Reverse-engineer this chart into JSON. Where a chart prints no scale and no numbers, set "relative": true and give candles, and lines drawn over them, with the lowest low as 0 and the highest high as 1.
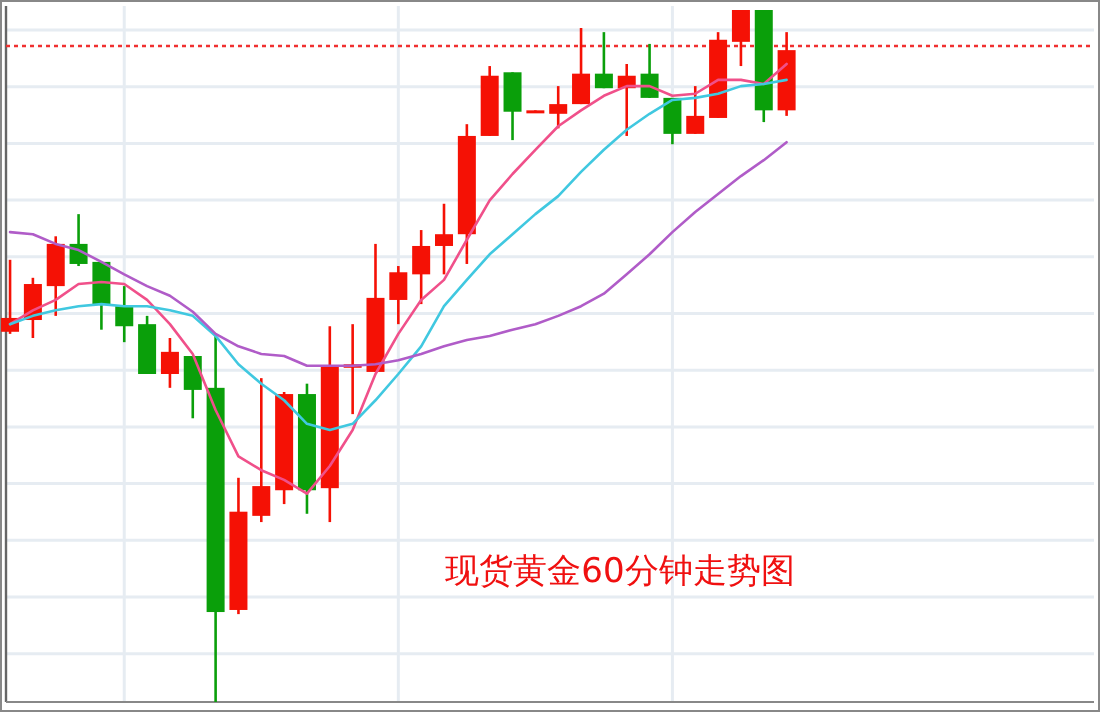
{
  "chart_data": {
    "type": "candlestick",
    "title": "现货黄金60分钟走势图",
    "relative": true,
    "grid": true,
    "categories": [
      null,
      null,
      null,
      null,
      null,
      null,
      null,
      null,
      null,
      null,
      null,
      null,
      null,
      null,
      null,
      null,
      null,
      null,
      null,
      null,
      null,
      null,
      null,
      null,
      null,
      null,
      null,
      null,
      null,
      null,
      null,
      null,
      null,
      null,
      null
    ],
    "ohlc": [
      [
        0.535,
        0.639,
        0.532,
        0.555
      ],
      [
        0.552,
        0.613,
        0.526,
        0.604
      ],
      [
        0.601,
        0.673,
        0.558,
        0.662
      ],
      [
        0.662,
        0.705,
        0.63,
        0.633
      ],
      [
        0.636,
        0.636,
        0.538,
        0.575
      ],
      [
        0.572,
        0.601,
        0.52,
        0.543
      ],
      [
        0.546,
        0.558,
        0.474,
        0.474
      ],
      [
        0.474,
        0.526,
        0.454,
        0.506
      ],
      [
        0.5,
        0.5,
        0.41,
        0.451
      ],
      [
        0.454,
        0.529,
        0,
        0.13
      ],
      [
        0.133,
        0.324,
        0.127,
        0.275
      ],
      [
        0.269,
        0.468,
        0.26,
        0.312
      ],
      [
        0.306,
        0.448,
        0.286,
        0.445
      ],
      [
        0.445,
        0.46,
        0.272,
        0.306
      ],
      [
        0.309,
        0.543,
        0.26,
        0.486
      ],
      [
        0.483,
        0.546,
        0.416,
        0.488
      ],
      [
        0.477,
        0.662,
        0.477,
        0.584
      ],
      [
        0.581,
        0.63,
        0.546,
        0.621
      ],
      [
        0.618,
        0.682,
        0.575,
        0.659
      ],
      [
        0.659,
        0.72,
        0.618,
        0.676
      ],
      [
        0.676,
        0.835,
        0.633,
        0.818
      ],
      [
        0.818,
        0.919,
        0.818,
        0.905
      ],
      [
        0.91,
        0.91,
        0.812,
        0.853
      ],
      [
        0.853,
        0.855,
        0.853,
        0.855
      ],
      [
        0.85,
        0.89,
        0.829,
        0.864
      ],
      [
        0.864,
        0.974,
        0.864,
        0.908
      ],
      [
        0.908,
        0.968,
        0.887,
        0.887
      ],
      [
        0.887,
        0.922,
        0.818,
        0.905
      ],
      [
        0.908,
        0.951,
        0.873,
        0.873
      ],
      [
        0.873,
        0.873,
        0.806,
        0.821
      ],
      [
        0.821,
        0.89,
        0.821,
        0.847
      ],
      [
        0.844,
        0.968,
        0.844,
        0.957
      ],
      [
        0.954,
        1,
        0.919,
        1
      ],
      [
        1,
        1,
        0.838,
        0.855
      ],
      [
        0.855,
        0.968,
        0.847,
        0.942
      ]
    ],
    "colors": [
      "#f51105",
      "#f51105",
      "#f51105",
      "#0a9f0a",
      "#0a9f0a",
      "#0a9f0a",
      "#0a9f0a",
      "#f51105",
      "#0a9f0a",
      "#0a9f0a",
      "#f51105",
      "#f51105",
      "#f51105",
      "#0a9f0a",
      "#f51105",
      "#f51105",
      "#f51105",
      "#f51105",
      "#f51105",
      "#f51105",
      "#f51105",
      "#f51105",
      "#0a9f0a",
      "#f51105",
      "#f51105",
      "#f51105",
      "#0a9f0a",
      "#f51105",
      "#0a9f0a",
      "#0a9f0a",
      "#f51105",
      "#f51105",
      "#f51105",
      "#0a9f0a",
      "#f51105"
    ],
    "series": [
      {
        "type": "line",
        "color": "#f0508a",
        "values": [
          0.546,
          0.566,
          0.581,
          0.604,
          0.607,
          0.604,
          0.581,
          0.546,
          0.503,
          0.422,
          0.355,
          0.335,
          0.321,
          0.301,
          0.341,
          0.393,
          0.474,
          0.532,
          0.581,
          0.61,
          0.668,
          0.725,
          0.763,
          0.798,
          0.832,
          0.855,
          0.876,
          0.89,
          0.89,
          0.876,
          0.879,
          0.899,
          0.899,
          0.893,
          0.922
        ]
      },
      {
        "type": "line",
        "color": "#40c8e0",
        "values": [
          0.546,
          0.558,
          0.566,
          0.572,
          0.575,
          0.572,
          0.572,
          0.566,
          0.558,
          0.529,
          0.488,
          0.46,
          0.436,
          0.402,
          0.393,
          0.402,
          0.436,
          0.474,
          0.514,
          0.572,
          0.61,
          0.647,
          0.676,
          0.705,
          0.731,
          0.766,
          0.798,
          0.827,
          0.85,
          0.87,
          0.873,
          0.879,
          0.89,
          0.893,
          0.899
        ]
      },
      {
        "type": "line",
        "color": "#b05cc8",
        "values": [
          0.679,
          0.676,
          0.662,
          0.653,
          0.636,
          0.618,
          0.601,
          0.587,
          0.564,
          0.532,
          0.514,
          0.503,
          0.5,
          0.486,
          0.486,
          0.486,
          0.488,
          0.494,
          0.503,
          0.514,
          0.523,
          0.529,
          0.538,
          0.546,
          0.558,
          0.572,
          0.59,
          0.618,
          0.647,
          0.679,
          0.708,
          0.734,
          0.76,
          0.783,
          0.809
        ]
      }
    ],
    "ref_lines": [
      {
        "axis": "y",
        "value": 0.948,
        "color": "#f03030",
        "line_style": "dotted"
      }
    ]
  }
}
